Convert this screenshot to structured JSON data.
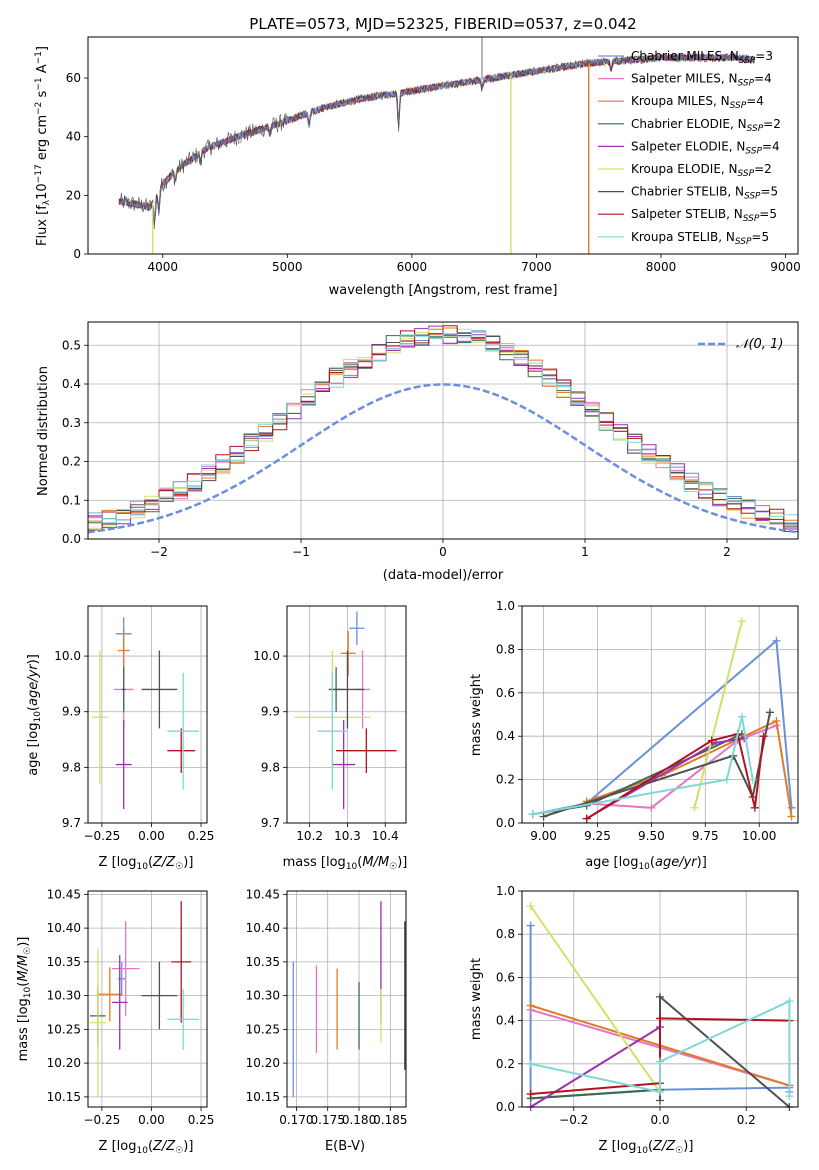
{
  "figure": {
    "title": "PLATE=0573, MJD=52325, FIBERID=0537, z=0.042",
    "models": [
      {
        "name": "Chabrier MILES",
        "nssp": "3",
        "color": "#6a8fdc"
      },
      {
        "name": "Salpeter MILES",
        "nssp": "4",
        "color": "#e377c2"
      },
      {
        "name": "Kroupa MILES",
        "nssp": "4",
        "color": "#e07b28"
      },
      {
        "name": "Chabrier ELODIE",
        "nssp": "2",
        "color": "#3a6b4e"
      },
      {
        "name": "Salpeter ELODIE",
        "nssp": "4",
        "color": "#9b30b0"
      },
      {
        "name": "Kroupa ELODIE",
        "nssp": "2",
        "color": "#d4e06a"
      },
      {
        "name": "Chabrier STELIB",
        "nssp": "5",
        "color": "#505050"
      },
      {
        "name": "Salpeter STELIB",
        "nssp": "5",
        "color": "#b0141e"
      },
      {
        "name": "Kroupa STELIB",
        "nssp": "5",
        "color": "#7fd8d6"
      }
    ]
  },
  "chart_data": [
    {
      "id": "spectrum",
      "type": "line",
      "ylabel": "Flux [f_λ 10^-17 erg cm^-2 s^-1 A^-1]",
      "ylabel_parts": {
        "a": "Flux [f",
        "b": "λ",
        "c": "10",
        "d": "−17",
        "e": " erg cm",
        "f": "−2",
        "g": " s",
        "h": "−1",
        "i": " A",
        "j": "−1",
        "k": "]"
      },
      "xlabel": "wavelength [Angstrom, rest frame]",
      "xlim": [
        3400,
        9100
      ],
      "ylim": [
        0,
        74
      ],
      "xticks": [
        4000,
        5000,
        6000,
        7000,
        8000,
        9000
      ],
      "yticks": [
        0,
        20,
        40,
        60
      ],
      "legend_position": "right",
      "continuum_knots": [
        [
          3650,
          18
        ],
        [
          3900,
          16
        ],
        [
          4000,
          24
        ],
        [
          4150,
          30
        ],
        [
          4350,
          36
        ],
        [
          4600,
          40
        ],
        [
          4900,
          44
        ],
        [
          5100,
          47
        ],
        [
          5300,
          50
        ],
        [
          5600,
          53
        ],
        [
          5900,
          55
        ],
        [
          6200,
          57
        ],
        [
          6500,
          59
        ],
        [
          6800,
          61
        ],
        [
          7100,
          63
        ],
        [
          7400,
          65
        ],
        [
          7700,
          66
        ],
        [
          8000,
          67
        ],
        [
          8300,
          67
        ],
        [
          8600,
          67
        ],
        [
          8750,
          66
        ]
      ],
      "data_range": [
        3650,
        8750
      ],
      "absorption_lines": [
        [
          3934,
          8
        ],
        [
          3969,
          7
        ],
        [
          4102,
          3
        ],
        [
          4304,
          4
        ],
        [
          4861,
          3
        ],
        [
          5175,
          5
        ],
        [
          5893,
          12
        ],
        [
          6563,
          3
        ],
        [
          7600,
          3
        ]
      ],
      "spikes": [
        {
          "x": 6563,
          "y": 75
        }
      ],
      "drop_lines": [
        {
          "x": 3920,
          "color": "#d4e06a"
        },
        {
          "x": 6795,
          "color": "#d4e06a"
        },
        {
          "x": 7420,
          "color": "#e07b28"
        }
      ]
    },
    {
      "id": "residual-histogram",
      "type": "histogram",
      "xlabel": "(data-model)/error",
      "ylabel": "Normed distribution",
      "xlim": [
        -2.5,
        2.5
      ],
      "ylim": [
        0,
        0.56
      ],
      "xticks": [
        -2,
        -1,
        0,
        1,
        2
      ],
      "yticks": [
        0,
        0.1,
        0.2,
        0.3,
        0.4,
        0.5
      ],
      "bin_width": 0.1,
      "legend_position": "top-right",
      "reference_curve": {
        "label": "𝒩(0, 1)",
        "mean": 0,
        "sigma": 1,
        "color": "#6a8fdc"
      }
    },
    {
      "id": "age-vs-metallicity",
      "type": "errorbar",
      "xlabel": "Z [log10(Z/Z☉)]",
      "ylabel": "age [log10(age/yr)]",
      "xlim": [
        -0.32,
        0.28
      ],
      "ylim": [
        9.7,
        10.09
      ],
      "xticks": [
        -0.25,
        0,
        0.25
      ],
      "yticks": [
        9.7,
        9.8,
        9.9,
        10.0
      ],
      "points": [
        {
          "x": -0.14,
          "y": 10.04,
          "xerr": 0.04,
          "yerr": 0.03
        },
        {
          "x": -0.14,
          "y": 9.94,
          "xerr": 0.05,
          "yerr": 0.07
        },
        {
          "x": -0.14,
          "y": 10.01,
          "xerr": 0.03,
          "yerr": 0.04
        },
        {
          "x": -0.14,
          "y": 9.94,
          "xerr": 0.01,
          "yerr": 0.04
        },
        {
          "x": -0.14,
          "y": 9.805,
          "xerr": 0.04,
          "yerr": 0.08
        },
        {
          "x": -0.26,
          "y": 9.89,
          "xerr": 0.04,
          "yerr": 0.12
        },
        {
          "x": 0.04,
          "y": 9.94,
          "xerr": 0.09,
          "yerr": 0.07
        },
        {
          "x": 0.15,
          "y": 9.83,
          "xerr": 0.07,
          "yerr": 0.04
        },
        {
          "x": 0.16,
          "y": 9.865,
          "xerr": 0.08,
          "yerr": 0.105
        }
      ]
    },
    {
      "id": "age-vs-mass",
      "type": "errorbar",
      "xlabel": "mass [log10(M/M☉)]",
      "ylabel": "",
      "xlim": [
        10.14,
        10.455
      ],
      "ylim": [
        9.7,
        10.09
      ],
      "xticks": [
        10.2,
        10.3,
        10.4
      ],
      "yticks": [
        9.7,
        9.8,
        9.9,
        10.0
      ],
      "points": [
        {
          "x": 10.325,
          "y": 10.05,
          "xerr": 0.02,
          "yerr": 0.03
        },
        {
          "x": 10.34,
          "y": 9.94,
          "xerr": 0.02,
          "yerr": 0.07
        },
        {
          "x": 10.302,
          "y": 10.005,
          "xerr": 0.02,
          "yerr": 0.04
        },
        {
          "x": 10.27,
          "y": 9.94,
          "xerr": 0.02,
          "yerr": 0.04
        },
        {
          "x": 10.29,
          "y": 9.805,
          "xerr": 0.03,
          "yerr": 0.08
        },
        {
          "x": 10.26,
          "y": 9.89,
          "xerr": 0.1,
          "yerr": 0.12
        },
        {
          "x": 10.3,
          "y": 9.94,
          "xerr": 0.045,
          "yerr": 0.07
        },
        {
          "x": 10.35,
          "y": 9.83,
          "xerr": 0.08,
          "yerr": 0.04
        },
        {
          "x": 10.26,
          "y": 9.865,
          "xerr": 0.04,
          "yerr": 0.105
        }
      ]
    },
    {
      "id": "massweight-vs-age",
      "type": "line",
      "xlabel": "age [log10(age/yr)]",
      "ylabel": "mass weight",
      "xlim": [
        8.9,
        10.18
      ],
      "ylim": [
        0,
        1.0
      ],
      "xticks": [
        9.0,
        9.25,
        9.5,
        9.75,
        10.0
      ],
      "yticks": [
        0,
        0.2,
        0.4,
        0.6,
        0.8,
        1.0
      ],
      "series": [
        {
          "x": [
            8.95,
            9.2,
            10.08,
            10.15
          ],
          "y": [
            0.04,
            0.09,
            0.84,
            0.07
          ]
        },
        {
          "x": [
            9.2,
            9.5,
            9.9,
            10.08
          ],
          "y": [
            0.09,
            0.07,
            0.38,
            0.45
          ]
        },
        {
          "x": [
            9.2,
            9.55,
            10.08,
            10.15
          ],
          "y": [
            0.1,
            0.22,
            0.47,
            0.03
          ]
        },
        {
          "x": [
            8.95,
            9.2,
            9.92
          ],
          "y": [
            0.04,
            0.08,
            0.41
          ]
        },
        {
          "x": [
            9.2,
            9.8,
            9.93
          ],
          "y": [
            0.02,
            0.37,
            0.39
          ]
        },
        {
          "x": [
            9.7,
            9.92
          ],
          "y": [
            0.07,
            0.93
          ]
        },
        {
          "x": [
            9.0,
            9.88,
            9.97,
            10.05
          ],
          "y": [
            0.03,
            0.31,
            0.12,
            0.51
          ]
        },
        {
          "x": [
            9.2,
            9.78,
            9.9,
            9.98,
            10.02
          ],
          "y": [
            0.02,
            0.38,
            0.41,
            0.07,
            0.4
          ]
        },
        {
          "x": [
            8.95,
            9.85,
            9.92,
            9.97
          ],
          "y": [
            0.04,
            0.2,
            0.49,
            0.2
          ]
        }
      ]
    },
    {
      "id": "mass-vs-metallicity",
      "type": "errorbar",
      "xlabel": "Z [log10(Z/Z☉)]",
      "ylabel": "mass [log10(M/M☉)]",
      "xlim": [
        -0.32,
        0.28
      ],
      "ylim": [
        10.135,
        10.455
      ],
      "xticks": [
        -0.25,
        0,
        0.25
      ],
      "yticks": [
        10.15,
        10.2,
        10.25,
        10.3,
        10.35,
        10.4,
        10.45
      ],
      "points": [
        {
          "x": -0.15,
          "y": 10.325,
          "xerr": 0.02,
          "yerr": 0.025
        },
        {
          "x": -0.13,
          "y": 10.34,
          "xerr": 0.07,
          "yerr": 0.07
        },
        {
          "x": -0.21,
          "y": 10.302,
          "xerr": 0.06,
          "yerr": 0.04
        },
        {
          "x": -0.27,
          "y": 10.27,
          "xerr": 0.04,
          "yerr": 0.045
        },
        {
          "x": -0.16,
          "y": 10.29,
          "xerr": 0.04,
          "yerr": 0.07
        },
        {
          "x": -0.27,
          "y": 10.26,
          "xerr": 0.04,
          "yerr": 0.11
        },
        {
          "x": 0.04,
          "y": 10.3,
          "xerr": 0.09,
          "yerr": 0.05
        },
        {
          "x": 0.15,
          "y": 10.35,
          "xerr": 0.05,
          "yerr": 0.09
        },
        {
          "x": 0.16,
          "y": 10.265,
          "xerr": 0.08,
          "yerr": 0.045
        }
      ]
    },
    {
      "id": "mass-vs-extinction",
      "type": "errorbar",
      "xlabel": "E(B-V)",
      "ylabel": "",
      "xlim": [
        0.1685,
        0.1875
      ],
      "ylim": [
        10.135,
        10.455
      ],
      "xticks": [
        0.17,
        0.175,
        0.18,
        0.185
      ],
      "yticks": [
        10.15,
        10.2,
        10.25,
        10.3,
        10.35,
        10.4,
        10.45
      ],
      "points": [
        {
          "x": 0.1695,
          "y": 10.25,
          "yerr": 0.1
        },
        {
          "x": 0.1732,
          "y": 10.28,
          "yerr": 0.065
        },
        {
          "x": 0.1765,
          "y": 10.28,
          "yerr": 0.06
        },
        {
          "x": 0.18,
          "y": 10.27,
          "yerr": 0.05
        },
        {
          "x": 0.1835,
          "y": 10.35,
          "yerr": 0.09
        },
        {
          "x": 0.1835,
          "y": 10.27,
          "yerr": 0.04
        },
        {
          "x": 0.1873,
          "y": 10.3,
          "yerr": 0.11
        }
      ]
    },
    {
      "id": "massweight-vs-metallicity",
      "type": "line",
      "xlabel": "Z [log10(Z/Z☉)]",
      "ylabel": "mass weight",
      "xlim": [
        -0.32,
        0.32
      ],
      "ylim": [
        0,
        1.0
      ],
      "xticks": [
        -0.2,
        0,
        0.2
      ],
      "yticks": [
        0,
        0.2,
        0.4,
        0.6,
        0.8,
        1.0
      ],
      "series": [
        {
          "x": [
            -0.3,
            -0.3,
            -0.3,
            0.0,
            0.3,
            0.3
          ],
          "y": [
            0.84,
            0.2,
            0.04,
            0.08,
            0.09,
            0.07
          ]
        },
        {
          "x": [
            -0.3,
            0.3
          ],
          "y": [
            0.45,
            0.1
          ]
        },
        {
          "x": [
            -0.3,
            0.3
          ],
          "y": [
            0.47,
            0.1
          ]
        },
        {
          "x": [
            -0.3,
            0.0
          ],
          "y": [
            0.04,
            0.08
          ]
        },
        {
          "x": [
            -0.3,
            0.0
          ],
          "y": [
            0.0,
            0.37
          ]
        },
        {
          "x": [
            -0.3,
            0.0
          ],
          "y": [
            0.93,
            0.07
          ]
        },
        {
          "x": [
            0.0,
            0.0,
            0.3
          ],
          "y": [
            0.03,
            0.51,
            0.0
          ]
        },
        {
          "x": [
            -0.3,
            0.0,
            0.0,
            0.3
          ],
          "y": [
            0.06,
            0.11,
            0.41,
            0.4
          ]
        },
        {
          "x": [
            -0.3,
            0.0,
            0.0,
            0.3,
            0.3
          ],
          "y": [
            0.2,
            0.07,
            0.21,
            0.49,
            0.05
          ]
        }
      ]
    }
  ]
}
